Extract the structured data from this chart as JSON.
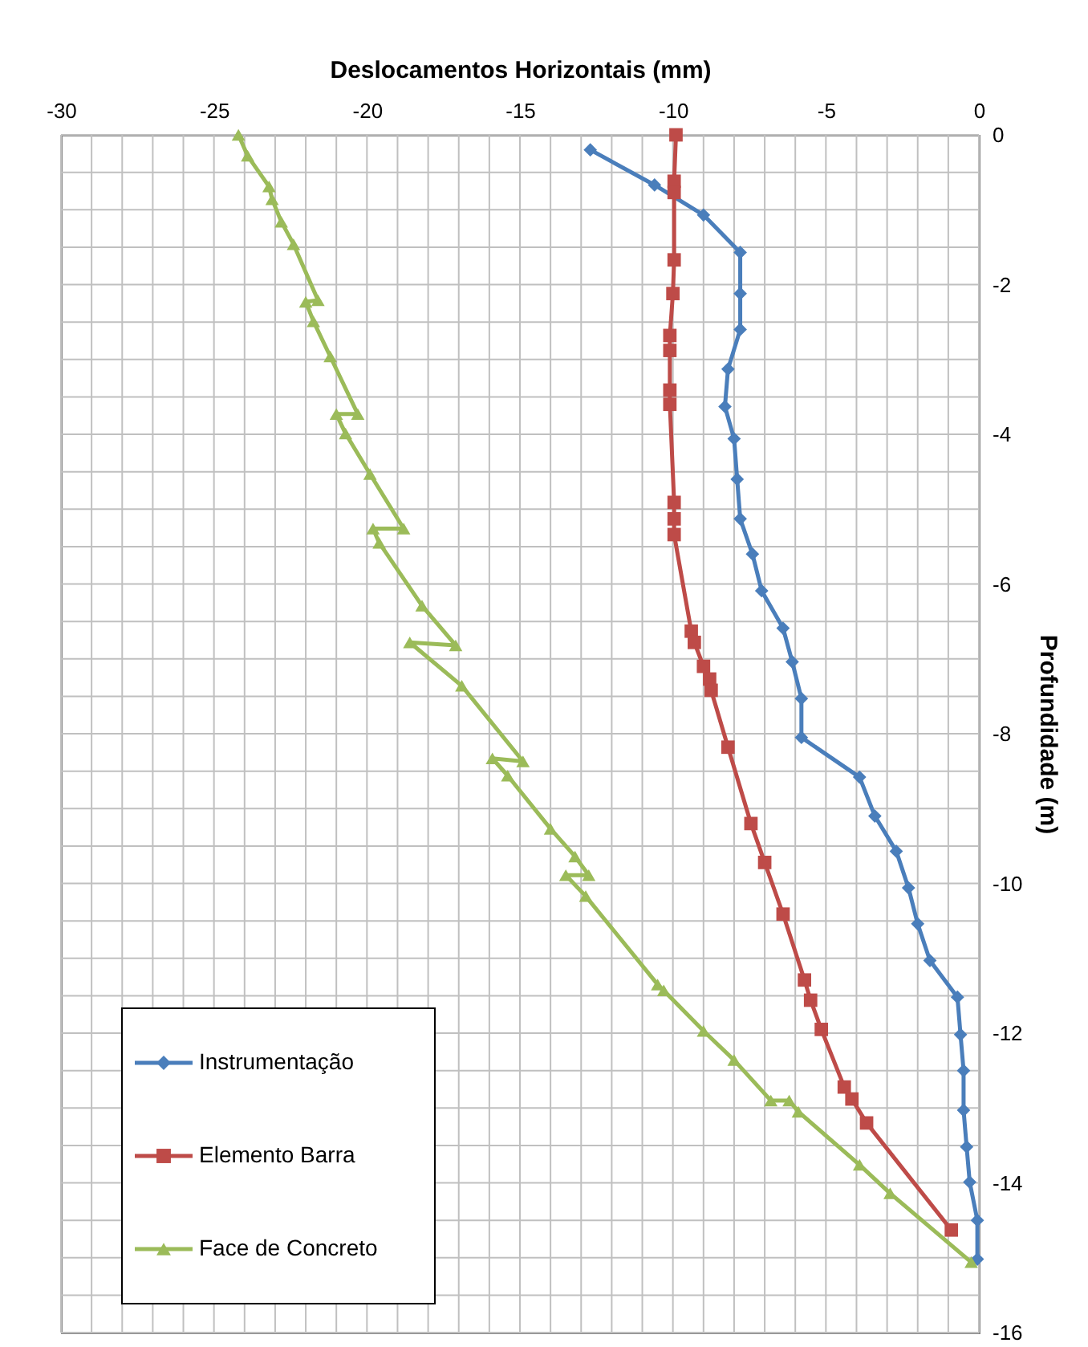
{
  "chart_data": {
    "type": "line",
    "xlabel": "Deslocamentos Horizontais (mm)",
    "ylabel": "Profundidade (m)",
    "xlim": [
      -30,
      0
    ],
    "ylim": [
      -16,
      0
    ],
    "xticks": [
      -30,
      {
        "value": -29,
        "label": null
      },
      {
        "value": -28,
        "label": null
      },
      {
        "value": -27,
        "label": null
      },
      {
        "value": -26,
        "label": null
      },
      -25,
      {
        "value": -24,
        "label": null
      },
      {
        "value": -23,
        "label": null
      },
      {
        "value": -22,
        "label": null
      },
      {
        "value": -21,
        "label": null
      },
      -20,
      {
        "value": -19,
        "label": null
      },
      {
        "value": -18,
        "label": null
      },
      {
        "value": -17,
        "label": null
      },
      {
        "value": -16,
        "label": null
      },
      -15,
      {
        "value": -14,
        "label": null
      },
      {
        "value": -13,
        "label": null
      },
      {
        "value": -12,
        "label": null
      },
      {
        "value": -11,
        "label": null
      },
      -10,
      {
        "value": -9,
        "label": null
      },
      {
        "value": -8,
        "label": null
      },
      {
        "value": -7,
        "label": null
      },
      {
        "value": -6,
        "label": null
      },
      -5,
      {
        "value": -4,
        "label": null
      },
      {
        "value": -3,
        "label": null
      },
      {
        "value": -2,
        "label": null
      },
      {
        "value": -1,
        "label": null
      },
      0
    ],
    "yticks": [
      0,
      {
        "value": -0.5,
        "label": null
      },
      {
        "value": -1,
        "label": null
      },
      {
        "value": -1.5,
        "label": null
      },
      -2,
      {
        "value": -2.5,
        "label": null
      },
      {
        "value": -3,
        "label": null
      },
      {
        "value": -3.5,
        "label": null
      },
      -4,
      {
        "value": -4.5,
        "label": null
      },
      {
        "value": -5,
        "label": null
      },
      {
        "value": -5.5,
        "label": null
      },
      -6,
      {
        "value": -6.5,
        "label": null
      },
      {
        "value": -7,
        "label": null
      },
      {
        "value": -7.5,
        "label": null
      },
      -8,
      {
        "value": -8.5,
        "label": null
      },
      {
        "value": -9,
        "label": null
      },
      {
        "value": -9.5,
        "label": null
      },
      -10,
      {
        "value": -10.5,
        "label": null
      },
      {
        "value": -11,
        "label": null
      },
      {
        "value": -11.5,
        "label": null
      },
      -12,
      {
        "value": -12.5,
        "label": null
      },
      {
        "value": -13,
        "label": null
      },
      {
        "value": -13.5,
        "label": null
      },
      -14,
      {
        "value": -14.5,
        "label": null
      },
      {
        "value": -15,
        "label": null
      },
      {
        "value": -15.5,
        "label": null
      },
      -16
    ],
    "grid": true,
    "legend": "bottom left",
    "line_style": "solid",
    "series": [
      {
        "name": "Instrumentação",
        "color": "#4a7ebb",
        "marker": "diamond",
        "x": [
          -12.7,
          -10.6,
          -9.0,
          -7.8,
          -7.8,
          -7.8,
          -8.2,
          -8.3,
          -8.0,
          -7.9,
          -7.8,
          -7.4,
          -7.1,
          -6.4,
          -6.1,
          -5.8,
          -5.8,
          -3.9,
          -3.4,
          -2.7,
          -2.3,
          -2.0,
          -1.6,
          -0.7,
          -0.6,
          -0.5,
          -0.5,
          -0.4,
          -0.3,
          -0.05,
          -0.05
        ],
        "values": [
          -0.2,
          -0.67,
          -1.07,
          -1.57,
          -2.12,
          -2.6,
          -3.13,
          -3.63,
          -4.06,
          -4.6,
          -5.13,
          -5.6,
          -6.09,
          -6.59,
          -7.04,
          -7.53,
          -8.05,
          -8.58,
          -9.1,
          -9.57,
          -10.06,
          -10.54,
          -11.03,
          -11.52,
          -12.02,
          -12.5,
          -13.03,
          -13.52,
          -13.99,
          -14.5,
          -15.02
        ]
      },
      {
        "name": "Elemento Barra",
        "color": "#be4b48",
        "marker": "square",
        "x": [
          -9.9,
          -9.96,
          -9.96,
          -9.96,
          -10.0,
          -10.1,
          -10.1,
          -10.1,
          -10.1,
          -9.96,
          -9.96,
          -9.96,
          -9.4,
          -9.3,
          -9.0,
          -8.8,
          -8.75,
          -8.2,
          -7.45,
          -7.0,
          -6.4,
          -5.7,
          -5.5,
          -5.15,
          -4.4,
          -4.15,
          -3.67,
          -0.9
        ],
        "values": [
          0,
          -0.62,
          -0.77,
          -1.67,
          -2.12,
          -2.68,
          -2.88,
          -3.41,
          -3.6,
          -4.91,
          -5.13,
          -5.34,
          -6.63,
          -6.78,
          -7.1,
          -7.27,
          -7.42,
          -8.18,
          -9.2,
          -9.72,
          -10.41,
          -11.29,
          -11.56,
          -11.95,
          -12.72,
          -12.88,
          -13.2,
          -14.63
        ]
      },
      {
        "name": "Face de Concreto",
        "color": "#9bbb59",
        "marker": "triangle",
        "x": [
          -24.2,
          -23.9,
          -23.2,
          -23.1,
          -22.8,
          -22.4,
          -21.6,
          -22.0,
          -21.75,
          -21.2,
          -20.3,
          -21.0,
          -20.7,
          -19.9,
          -18.8,
          -19.8,
          -19.6,
          -18.2,
          -17.1,
          -18.6,
          -16.9,
          -14.9,
          -15.9,
          -15.4,
          -14.0,
          -13.2,
          -12.75,
          -13.5,
          -12.85,
          -10.5,
          -10.3,
          -9.0,
          -8.0,
          -6.8,
          -6.2,
          -5.9,
          -3.9,
          -2.9,
          -0.25
        ],
        "values": [
          0,
          -0.28,
          -0.69,
          -0.86,
          -1.16,
          -1.46,
          -2.21,
          -2.23,
          -2.49,
          -2.96,
          -3.73,
          -3.73,
          -3.99,
          -4.53,
          -5.26,
          -5.26,
          -5.45,
          -6.29,
          -6.82,
          -6.78,
          -7.36,
          -8.37,
          -8.33,
          -8.56,
          -9.27,
          -9.64,
          -9.89,
          -9.89,
          -10.17,
          -11.35,
          -11.43,
          -11.97,
          -12.36,
          -12.9,
          -12.9,
          -13.05,
          -13.76,
          -14.14,
          -15.06
        ]
      }
    ]
  }
}
